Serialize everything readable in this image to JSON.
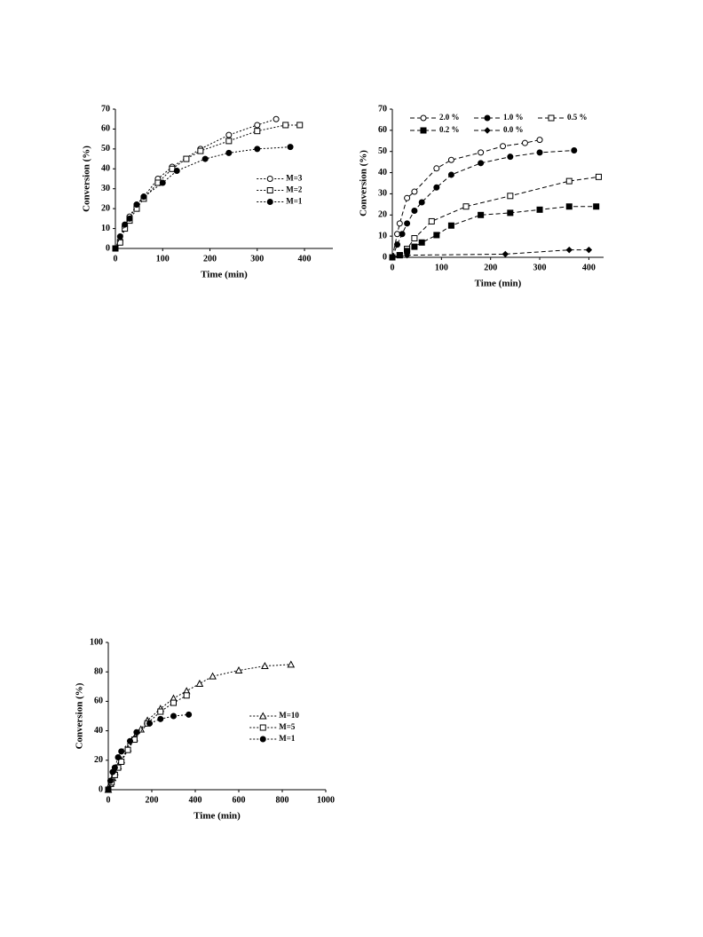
{
  "chart_data": [
    {
      "type": "line",
      "x_label": "Time (min)",
      "y_label": "Conversion (%)",
      "xlim": [
        0,
        460
      ],
      "xticks": [
        0,
        100,
        200,
        300,
        400
      ],
      "ylim": [
        0,
        70
      ],
      "yticks": [
        0,
        10,
        20,
        30,
        40,
        50,
        60,
        70
      ],
      "line_style": "dotted",
      "legend": "right",
      "series": [
        {
          "name": "M=3",
          "color": "#000000",
          "marker": "circle-open",
          "x": [
            0,
            10,
            20,
            30,
            45,
            60,
            90,
            120,
            180,
            240,
            300,
            340
          ],
          "values": [
            0,
            4,
            11,
            16,
            22,
            26,
            35,
            41,
            50,
            57,
            62,
            65
          ]
        },
        {
          "name": "M=2",
          "color": "#000000",
          "marker": "square-open",
          "x": [
            0,
            10,
            20,
            30,
            45,
            60,
            90,
            120,
            150,
            180,
            240,
            300,
            360,
            390
          ],
          "values": [
            0,
            3,
            10,
            14,
            20,
            25,
            33,
            40,
            45,
            49,
            54,
            59,
            62,
            62
          ]
        },
        {
          "name": "M=1",
          "color": "#000000",
          "marker": "circle-filled",
          "x": [
            0,
            10,
            20,
            30,
            45,
            60,
            100,
            130,
            190,
            240,
            300,
            370
          ],
          "values": [
            0,
            6,
            12,
            15,
            22,
            26,
            33,
            39,
            45,
            48,
            50,
            51
          ]
        }
      ]
    },
    {
      "type": "line",
      "x_label": "Time (min)",
      "y_label": "Conversion (%)",
      "xlim": [
        0,
        430
      ],
      "xticks": [
        0,
        100,
        200,
        300,
        400
      ],
      "ylim": [
        0,
        70
      ],
      "yticks": [
        0,
        10,
        20,
        30,
        40,
        50,
        60,
        70
      ],
      "line_style": "dashed",
      "legend": "top",
      "series": [
        {
          "name": "2.0 %",
          "color": "#000000",
          "marker": "circle-open",
          "x": [
            0,
            10,
            15,
            30,
            45,
            90,
            120,
            180,
            225,
            270,
            300
          ],
          "values": [
            0,
            11,
            16,
            28,
            31,
            42,
            46,
            49.5,
            52.5,
            54,
            55.5
          ]
        },
        {
          "name": "1.0 %",
          "color": "#000000",
          "marker": "circle-filled",
          "x": [
            0,
            10,
            20,
            30,
            45,
            60,
            90,
            120,
            180,
            240,
            300,
            370
          ],
          "values": [
            0,
            6,
            11,
            16,
            22,
            26,
            33,
            39,
            44.5,
            47.5,
            49.5,
            50.5
          ]
        },
        {
          "name": "0.5 %",
          "color": "#000000",
          "marker": "square-open",
          "x": [
            0,
            15,
            30,
            45,
            80,
            150,
            240,
            360,
            420
          ],
          "values": [
            0,
            1,
            4,
            9,
            17,
            24,
            29,
            36,
            38
          ]
        },
        {
          "name": "0.2 %",
          "color": "#000000",
          "marker": "square-filled",
          "x": [
            0,
            15,
            30,
            45,
            60,
            90,
            120,
            180,
            240,
            300,
            360,
            415
          ],
          "values": [
            0,
            1,
            3,
            5,
            7,
            10.5,
            15,
            20,
            21,
            22.5,
            24,
            24
          ]
        },
        {
          "name": "0.0 %",
          "color": "#000000",
          "marker": "diamond-filled",
          "x": [
            0,
            30,
            230,
            360,
            400
          ],
          "values": [
            0,
            1,
            1.5,
            3.5,
            3.5
          ]
        }
      ]
    },
    {
      "type": "line",
      "x_label": "Time (min)",
      "y_label": "Conversion (%)",
      "xlim": [
        0,
        1000
      ],
      "xticks": [
        0,
        200,
        400,
        600,
        800,
        1000
      ],
      "ylim": [
        0,
        100
      ],
      "yticks": [
        0,
        20,
        40,
        60,
        80,
        100
      ],
      "line_style": "dotted",
      "legend": "right",
      "series": [
        {
          "name": "M=10",
          "color": "#000000",
          "marker": "triangle-open",
          "x": [
            0,
            10,
            20,
            30,
            45,
            60,
            90,
            120,
            150,
            180,
            240,
            300,
            360,
            420,
            480,
            600,
            720,
            840
          ],
          "values": [
            0,
            4,
            8,
            12,
            16,
            20,
            28,
            35,
            41,
            47,
            55,
            62,
            67,
            72,
            77,
            81,
            84,
            85
          ]
        },
        {
          "name": "M=5",
          "color": "#000000",
          "marker": "square-open",
          "x": [
            0,
            15,
            30,
            45,
            60,
            90,
            120,
            180,
            240,
            300,
            360
          ],
          "values": [
            0,
            5,
            10,
            15,
            19,
            27,
            34,
            45,
            53,
            59,
            64
          ]
        },
        {
          "name": "M=1",
          "color": "#000000",
          "marker": "circle-filled",
          "x": [
            0,
            10,
            20,
            30,
            45,
            60,
            100,
            130,
            190,
            240,
            300,
            370
          ],
          "values": [
            0,
            6,
            12,
            15,
            22,
            26,
            33,
            39,
            45,
            48,
            50,
            51
          ]
        }
      ]
    }
  ]
}
